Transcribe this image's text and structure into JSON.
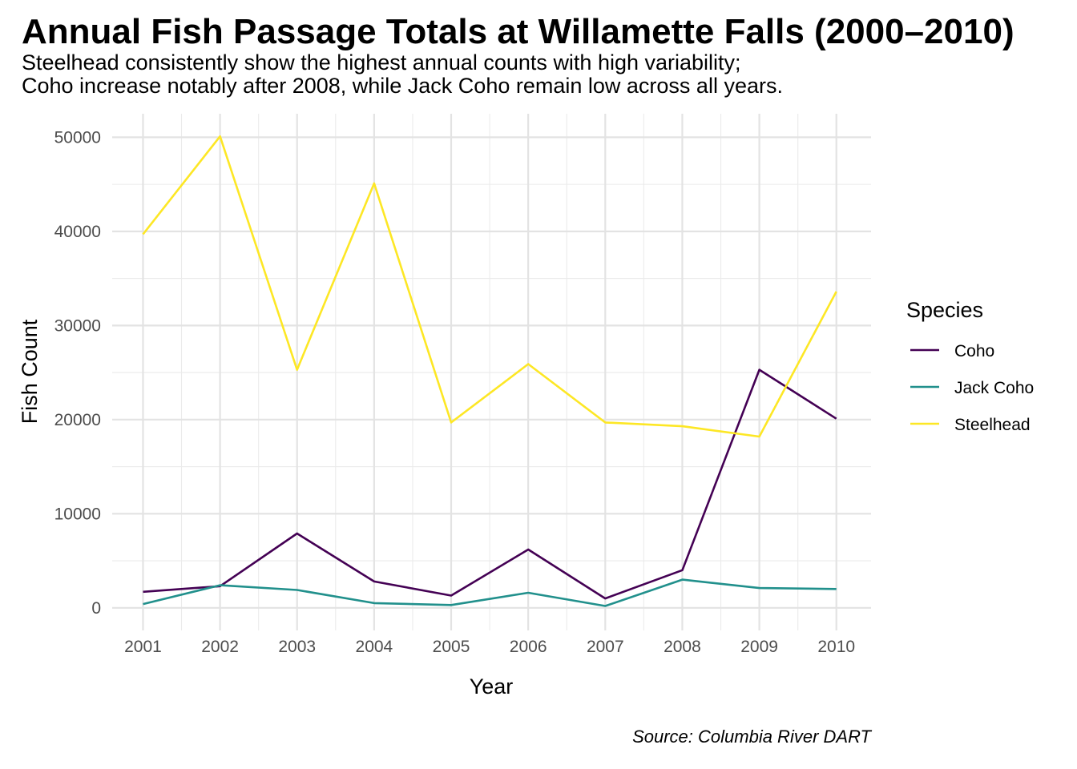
{
  "chart_data": {
    "type": "line",
    "title": "Annual Fish Passage Totals at Willamette Falls (2000–2010)",
    "subtitle_lines": [
      "Steelhead consistently show the highest annual counts with high variability;",
      "Coho increase notably after 2008, while Jack Coho remain low across all years."
    ],
    "xlabel": "Year",
    "ylabel": "Fish Count",
    "caption": "Source: Columbia River DART",
    "legend_title": "Species",
    "legend_position": "right",
    "grid": true,
    "x": [
      2001,
      2002,
      2003,
      2004,
      2005,
      2006,
      2007,
      2008,
      2009,
      2010
    ],
    "xlim": [
      2000.6,
      2010.45
    ],
    "ylim": [
      -2400,
      52500
    ],
    "y_ticks": [
      0,
      10000,
      20000,
      30000,
      40000,
      50000
    ],
    "series": [
      {
        "name": "Coho",
        "color": "#440154",
        "values": [
          1700,
          2300,
          7900,
          2800,
          1300,
          6200,
          1000,
          4000,
          25300,
          20100
        ]
      },
      {
        "name": "Jack Coho",
        "color": "#21908C",
        "values": [
          400,
          2400,
          1900,
          500,
          300,
          1600,
          200,
          3000,
          2100,
          2000
        ]
      },
      {
        "name": "Steelhead",
        "color": "#FDE725",
        "values": [
          39700,
          50100,
          25300,
          45100,
          19700,
          25900,
          19700,
          19300,
          18200,
          33600
        ]
      }
    ]
  }
}
